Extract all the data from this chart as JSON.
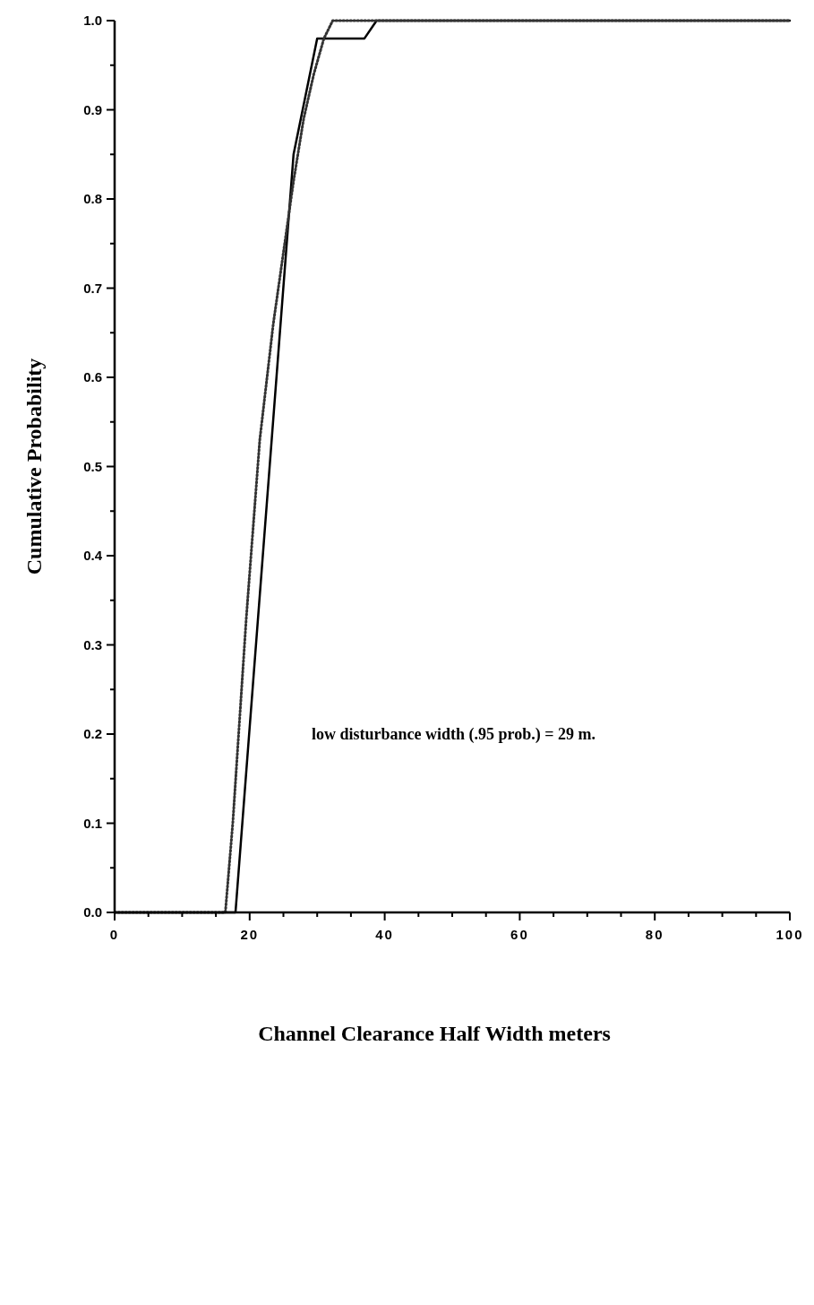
{
  "chart_data": {
    "type": "line",
    "xlabel": "Channel Clearance Half Width  meters",
    "ylabel": "Cumulative  Probability",
    "xlim": [
      0,
      100
    ],
    "ylim": [
      0,
      1
    ],
    "xticks": [
      0,
      {
        "value": 5,
        "label": null
      },
      {
        "value": 10,
        "label": null
      },
      {
        "value": 15,
        "label": null
      },
      20,
      {
        "value": 25,
        "label": null
      },
      {
        "value": 30,
        "label": null
      },
      {
        "value": 35,
        "label": null
      },
      40,
      {
        "value": 45,
        "label": null
      },
      {
        "value": 50,
        "label": null
      },
      {
        "value": 55,
        "label": null
      },
      60,
      {
        "value": 65,
        "label": null
      },
      {
        "value": 70,
        "label": null
      },
      {
        "value": 75,
        "label": null
      },
      80,
      {
        "value": 85,
        "label": null
      },
      {
        "value": 90,
        "label": null
      },
      {
        "value": 95,
        "label": null
      },
      100
    ],
    "yticks": [
      {
        "value": 0,
        "label": "0.0"
      },
      {
        "value": 0.05,
        "label": null
      },
      0.1,
      {
        "value": 0.15,
        "label": null
      },
      0.2,
      {
        "value": 0.25,
        "label": null
      },
      0.3,
      {
        "value": 0.35,
        "label": null
      },
      0.4,
      {
        "value": 0.45,
        "label": null
      },
      0.5,
      {
        "value": 0.55,
        "label": null
      },
      0.6,
      {
        "value": 0.65,
        "label": null
      },
      0.7,
      {
        "value": 0.75,
        "label": null
      },
      0.8,
      {
        "value": 0.85,
        "label": null
      },
      0.9,
      {
        "value": 0.95,
        "label": null
      },
      {
        "value": 1,
        "label": "1.0"
      }
    ],
    "grid": false,
    "marker": "none",
    "annotations": [
      "low disturbance width (.95 prob.) = 29  m."
    ],
    "series": [
      {
        "color": "#000000",
        "line_style": "solid",
        "x": [
          0,
          17.9,
          26.5,
          30,
          37,
          38.8,
          100
        ],
        "values": [
          0,
          0,
          0.85,
          0.98,
          0.98,
          1,
          1
        ]
      },
      {
        "color": "#333333",
        "line_style": "dotted",
        "x": [
          0,
          16.4,
          17.5,
          19.5,
          21.5,
          23.5,
          25,
          26.5,
          28,
          29.5,
          31,
          32.3,
          100
        ],
        "values": [
          0,
          0,
          0.1,
          0.33,
          0.53,
          0.66,
          0.74,
          0.82,
          0.89,
          0.94,
          0.98,
          1,
          1
        ]
      }
    ]
  }
}
